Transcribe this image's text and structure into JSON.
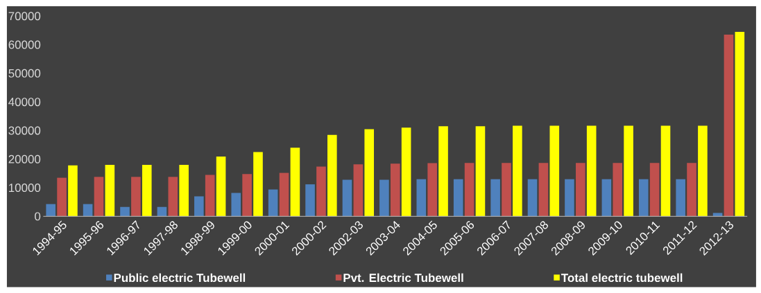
{
  "chart_data": {
    "type": "bar",
    "categories": [
      "1994-95",
      "1995-96",
      "1996-97",
      "1997-98",
      "1998-99",
      "1999-00",
      "2000-01",
      "2000-02",
      "2002-03",
      "2003-04",
      "2004-05",
      "2005-06",
      "2006-07",
      "2007-08",
      "2008-09",
      "2009-10",
      "2010-11",
      "2011-12",
      "2012-13"
    ],
    "series": [
      {
        "name": "Public electric Tubewell",
        "color": "#4f81bd",
        "values": [
          4300,
          4300,
          3300,
          3300,
          7000,
          8200,
          9400,
          11200,
          12800,
          12800,
          13000,
          13000,
          13000,
          13000,
          13000,
          13000,
          13000,
          13000,
          1200
        ]
      },
      {
        "name": "Pvt. Electric Tubewell",
        "color": "#c0504d",
        "values": [
          13500,
          13800,
          13800,
          13800,
          14500,
          14800,
          15200,
          17400,
          18200,
          18400,
          18600,
          18700,
          18700,
          18700,
          18700,
          18700,
          18700,
          18700,
          63500
        ]
      },
      {
        "name": "Total electric tubewell",
        "color": "#ffff00",
        "values": [
          17800,
          18000,
          18000,
          18000,
          20900,
          22500,
          24000,
          28500,
          30500,
          31000,
          31500,
          31500,
          31700,
          31700,
          31700,
          31700,
          31700,
          31700,
          64500
        ]
      }
    ],
    "ylim": [
      0,
      70000
    ],
    "yticks": [
      0,
      10000,
      20000,
      30000,
      40000,
      50000,
      60000,
      70000
    ],
    "legend": "bottom"
  }
}
